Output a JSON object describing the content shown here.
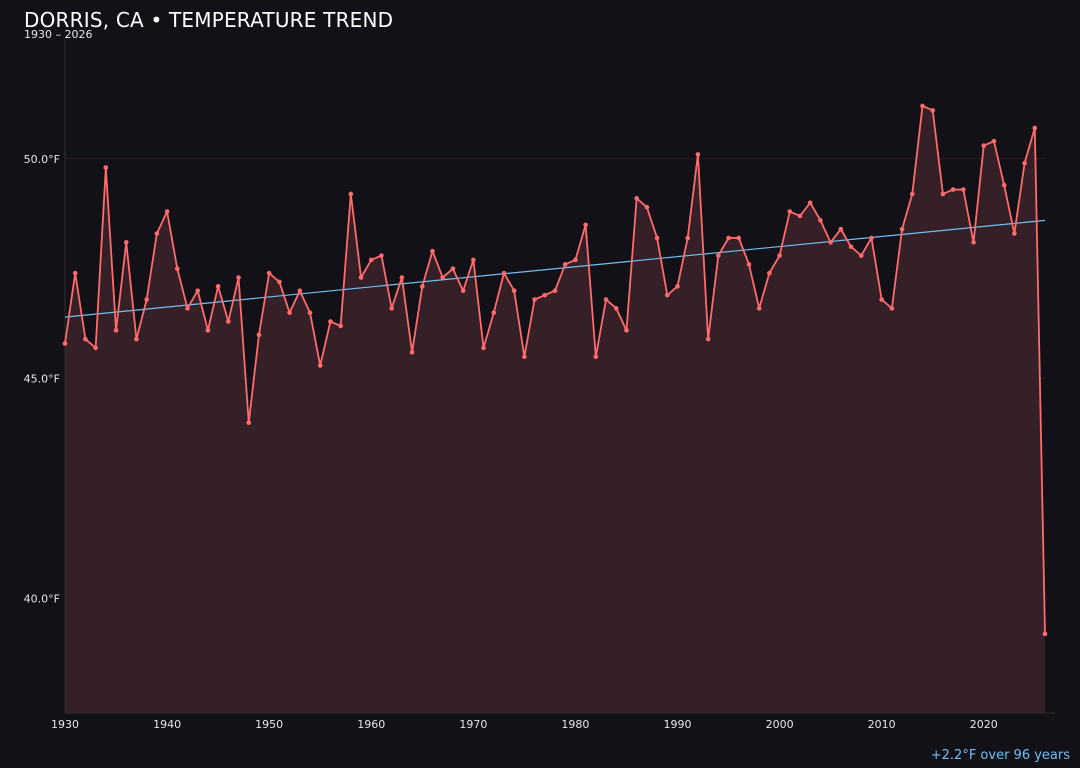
{
  "title": "DORRIS, CA • TEMPERATURE TREND",
  "subtitle": "1930 – 2026",
  "trend_note": "+2.2°F over 96 years",
  "colors": {
    "background": "#121118",
    "line": "#ff6b6b",
    "area": "#352027",
    "trend": "#6ec0f5",
    "grid": "#2a1f28",
    "axis": "#2e2c36"
  },
  "chart_data": {
    "type": "line",
    "title": "DORRIS, CA • TEMPERATURE TREND",
    "subtitle": "1930 – 2026",
    "xlabel": "",
    "ylabel": "",
    "xlim": [
      1930,
      2026
    ],
    "ylim": [
      37.4,
      52.7
    ],
    "grid": true,
    "x_ticks": [
      1930,
      1940,
      1950,
      1960,
      1970,
      1980,
      1990,
      2000,
      2010,
      2020
    ],
    "x_tick_labels": [
      "1930",
      "1940",
      "1950",
      "1960",
      "1970",
      "1980",
      "1990",
      "2000",
      "2010",
      "2020"
    ],
    "y_ticks": [
      40.0,
      45.0,
      50.0
    ],
    "y_tick_labels": [
      "40.0°F",
      "45.0°F",
      "50.0°F"
    ],
    "series": [
      {
        "name": "",
        "x": [
          1930,
          1931,
          1932,
          1933,
          1934,
          1935,
          1936,
          1937,
          1938,
          1939,
          1940,
          1941,
          1942,
          1943,
          1944,
          1945,
          1946,
          1947,
          1948,
          1949,
          1950,
          1951,
          1952,
          1953,
          1954,
          1955,
          1956,
          1957,
          1958,
          1959,
          1960,
          1961,
          1962,
          1963,
          1964,
          1965,
          1966,
          1967,
          1968,
          1969,
          1970,
          1971,
          1972,
          1973,
          1974,
          1975,
          1976,
          1977,
          1978,
          1979,
          1980,
          1981,
          1982,
          1983,
          1984,
          1985,
          1986,
          1987,
          1988,
          1989,
          1990,
          1991,
          1992,
          1993,
          1994,
          1995,
          1996,
          1997,
          1998,
          1999,
          2000,
          2001,
          2002,
          2003,
          2004,
          2005,
          2006,
          2007,
          2008,
          2009,
          2010,
          2011,
          2012,
          2013,
          2014,
          2015,
          2016,
          2017,
          2018,
          2019,
          2020,
          2021,
          2022,
          2023,
          2024,
          2025,
          2026
        ],
        "y": [
          45.8,
          47.4,
          45.9,
          45.7,
          49.8,
          46.1,
          48.1,
          45.9,
          46.8,
          48.3,
          48.8,
          47.5,
          46.6,
          47.0,
          46.1,
          47.1,
          46.3,
          47.3,
          44.0,
          46.0,
          47.4,
          47.2,
          46.5,
          47.0,
          46.5,
          45.3,
          46.3,
          46.2,
          49.2,
          47.3,
          47.7,
          47.8,
          46.6,
          47.3,
          45.6,
          47.1,
          47.9,
          47.3,
          47.5,
          47.0,
          47.7,
          45.7,
          46.5,
          47.4,
          47.0,
          45.5,
          46.8,
          46.9,
          47.0,
          47.6,
          47.7,
          48.5,
          45.5,
          46.8,
          46.6,
          46.1,
          49.1,
          48.9,
          48.2,
          46.9,
          47.1,
          48.2,
          50.1,
          45.9,
          47.8,
          48.2,
          48.2,
          47.6,
          46.6,
          47.4,
          47.8,
          48.8,
          48.7,
          49.0,
          48.6,
          48.1,
          48.4,
          48.0,
          47.8,
          48.2,
          46.8,
          46.6,
          48.4,
          49.2,
          51.2,
          51.1,
          49.2,
          49.3,
          49.3,
          48.1,
          50.3,
          50.4,
          49.4,
          48.3,
          49.9,
          50.7,
          39.2
        ]
      }
    ],
    "trend_line": {
      "x": [
        1930,
        2026
      ],
      "y": [
        46.4,
        48.6
      ]
    }
  }
}
